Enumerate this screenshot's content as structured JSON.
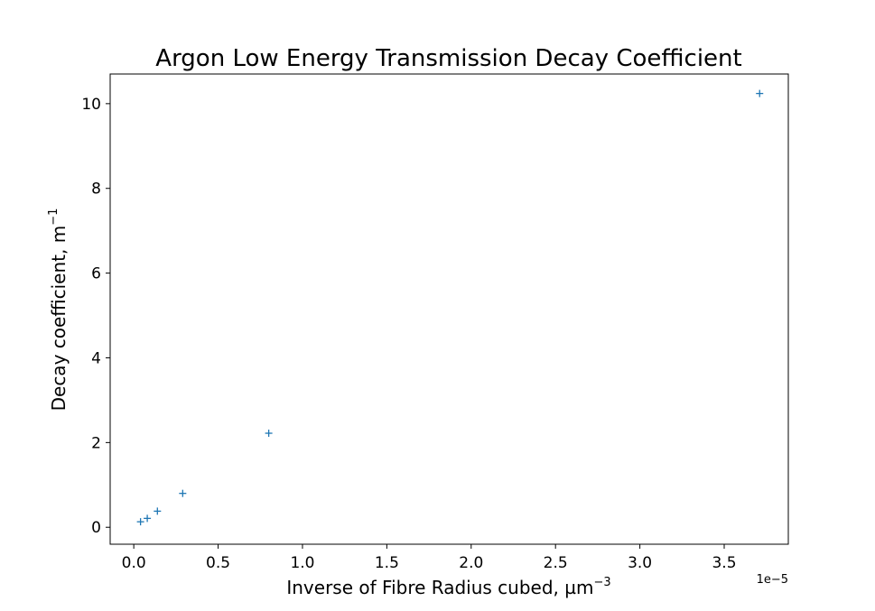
{
  "chart_data": {
    "type": "scatter",
    "title": "Argon Low Energy Transmission Decay Coefficient",
    "xlabel": "Inverse of Fibre Radius cubed, µm",
    "xlabel_sup": "−3",
    "ylabel": "Decay coefficient, m",
    "ylabel_sup": "−1",
    "x_offset_label": "1e−5",
    "x_ticks": [
      0.0,
      0.5,
      1.0,
      1.5,
      2.0,
      2.5,
      3.0,
      3.5
    ],
    "x_tick_labels": [
      "0.0",
      "0.5",
      "1.0",
      "1.5",
      "2.0",
      "2.5",
      "3.0",
      "3.5"
    ],
    "y_ticks": [
      0,
      2,
      4,
      6,
      8,
      10
    ],
    "y_tick_labels": [
      "0",
      "2",
      "4",
      "6",
      "8",
      "10"
    ],
    "xlim": [
      -0.14,
      3.88
    ],
    "ylim": [
      -0.4,
      10.7
    ],
    "grid": false,
    "marker": "+",
    "color": "#1f77b4",
    "series": [
      {
        "x": [
          0.04,
          0.08,
          0.14,
          0.29,
          0.8,
          3.71
        ],
        "y": [
          0.13,
          0.21,
          0.38,
          0.8,
          2.22,
          10.24
        ]
      }
    ]
  }
}
